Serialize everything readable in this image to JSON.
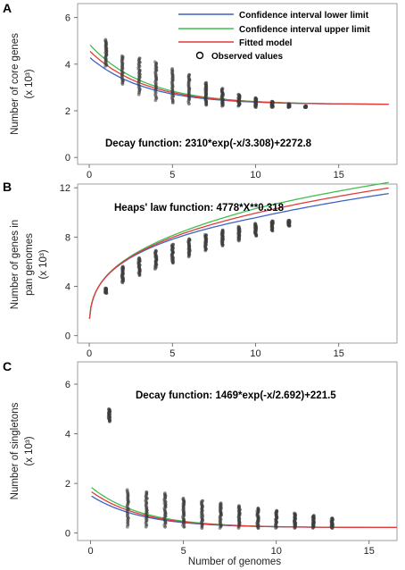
{
  "colors": {
    "lower": "#3a63c8",
    "upper": "#3fbf4f",
    "fitted": "#e23b3b",
    "points": "#3d3d3d"
  },
  "legend": {
    "items": [
      {
        "key": "lower",
        "label": "Confidence interval lower limit"
      },
      {
        "key": "upper",
        "label": "Confidence interval upper limit"
      },
      {
        "key": "fitted",
        "label": "Fitted model"
      },
      {
        "key": "observed",
        "label": "Observed values"
      }
    ]
  },
  "chart_data": [
    {
      "panel": "A",
      "type": "scatter",
      "ylabel": "Number of core genes",
      "yunit": "(x 10³)",
      "xlabel": "",
      "annotation": "Decay function: 2310*exp(-x/3.308)+2272.8",
      "model": {
        "kind": "decay",
        "a": 2310,
        "b": 3.308,
        "c": 2272.8
      },
      "xlim": [
        -0.7,
        18.5
      ],
      "ylim": [
        -0.3,
        6.6
      ],
      "xticks": [
        0,
        5,
        10,
        15
      ],
      "yticks": [
        0,
        2,
        4,
        6
      ],
      "ci_spread": 0.12,
      "line_xmax": 18,
      "observed": [
        {
          "x": 1,
          "ymin": 3.9,
          "ymax": 5.05
        },
        {
          "x": 2,
          "ymin": 3.15,
          "ymax": 4.35
        },
        {
          "x": 3,
          "ymin": 2.7,
          "ymax": 4.25
        },
        {
          "x": 4,
          "ymin": 2.45,
          "ymax": 4.1
        },
        {
          "x": 5,
          "ymin": 2.35,
          "ymax": 3.8
        },
        {
          "x": 6,
          "ymin": 2.3,
          "ymax": 3.55
        },
        {
          "x": 7,
          "ymin": 2.25,
          "ymax": 3.2
        },
        {
          "x": 8,
          "ymin": 2.2,
          "ymax": 2.95
        },
        {
          "x": 9,
          "ymin": 2.2,
          "ymax": 2.7
        },
        {
          "x": 10,
          "ymin": 2.15,
          "ymax": 2.55
        },
        {
          "x": 11,
          "ymin": 2.15,
          "ymax": 2.4
        },
        {
          "x": 12,
          "ymin": 2.15,
          "ymax": 2.3
        },
        {
          "x": 13,
          "ymin": 2.15,
          "ymax": 2.2
        }
      ]
    },
    {
      "panel": "B",
      "type": "scatter",
      "ylabel": "Number of genes in pan genomes",
      "yunit": "(x 10³)",
      "xlabel": "",
      "annotation": "Heaps' law function: 4778*X**0.318",
      "model": {
        "kind": "heaps",
        "a": 4778,
        "b": 0.318
      },
      "xlim": [
        -0.7,
        18.5
      ],
      "ylim": [
        -0.6,
        12.3
      ],
      "xticks": [
        0,
        5,
        10,
        15
      ],
      "yticks": [
        0,
        4,
        8,
        12
      ],
      "ci_spread": 0.25,
      "line_xmax": 18,
      "observed": [
        {
          "x": 1,
          "ymin": 3.45,
          "ymax": 3.85
        },
        {
          "x": 2,
          "ymin": 4.3,
          "ymax": 5.6
        },
        {
          "x": 3,
          "ymin": 4.9,
          "ymax": 6.3
        },
        {
          "x": 4,
          "ymin": 5.4,
          "ymax": 6.9
        },
        {
          "x": 5,
          "ymin": 5.9,
          "ymax": 7.4
        },
        {
          "x": 6,
          "ymin": 6.4,
          "ymax": 7.85
        },
        {
          "x": 7,
          "ymin": 6.9,
          "ymax": 8.2
        },
        {
          "x": 8,
          "ymin": 7.3,
          "ymax": 8.55
        },
        {
          "x": 9,
          "ymin": 7.7,
          "ymax": 8.85
        },
        {
          "x": 10,
          "ymin": 8.1,
          "ymax": 9.1
        },
        {
          "x": 11,
          "ymin": 8.5,
          "ymax": 9.3
        },
        {
          "x": 12,
          "ymin": 8.9,
          "ymax": 9.35
        }
      ]
    },
    {
      "panel": "C",
      "type": "scatter",
      "ylabel": "Number of singletons",
      "yunit": "(x 10³)",
      "xlabel": "Number of genomes",
      "annotation": "Decay function: 1469*exp(-x/2.692)+221.5",
      "model": {
        "kind": "decay",
        "a": 1469,
        "b": 2.692,
        "c": 221.5
      },
      "xlim": [
        -0.7,
        16.5
      ],
      "ylim": [
        -0.3,
        6.9
      ],
      "xticks": [
        0,
        5,
        10,
        15
      ],
      "yticks": [
        0,
        2,
        4,
        6
      ],
      "ci_spread": 0.12,
      "line_xmax": 16.5,
      "observed": [
        {
          "x": 1,
          "ymin": 4.5,
          "ymax": 5.0
        },
        {
          "x": 2,
          "ymin": 0.25,
          "ymax": 1.75
        },
        {
          "x": 3,
          "ymin": 0.25,
          "ymax": 1.65
        },
        {
          "x": 4,
          "ymin": 0.25,
          "ymax": 1.6
        },
        {
          "x": 5,
          "ymin": 0.25,
          "ymax": 1.4
        },
        {
          "x": 6,
          "ymin": 0.2,
          "ymax": 1.3
        },
        {
          "x": 7,
          "ymin": 0.2,
          "ymax": 1.2
        },
        {
          "x": 8,
          "ymin": 0.2,
          "ymax": 1.1
        },
        {
          "x": 9,
          "ymin": 0.2,
          "ymax": 1.0
        },
        {
          "x": 10,
          "ymin": 0.2,
          "ymax": 0.9
        },
        {
          "x": 11,
          "ymin": 0.2,
          "ymax": 0.8
        },
        {
          "x": 12,
          "ymin": 0.2,
          "ymax": 0.7
        },
        {
          "x": 13,
          "ymin": 0.2,
          "ymax": 0.6
        }
      ]
    }
  ]
}
